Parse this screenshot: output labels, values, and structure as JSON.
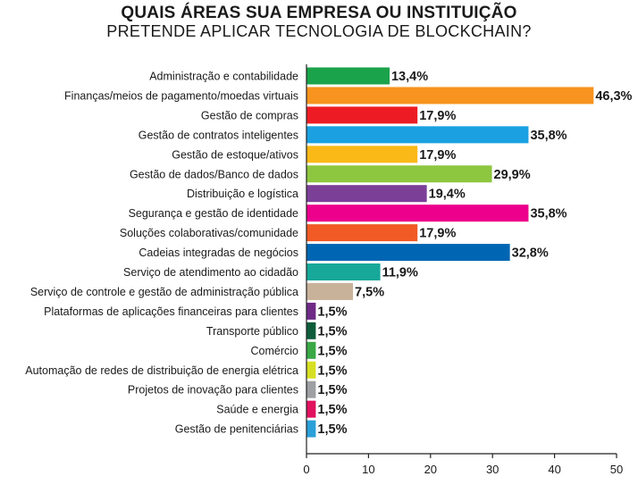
{
  "chart_data": {
    "type": "bar",
    "orientation": "horizontal",
    "title": "QUAIS ÁREAS SUA EMPRESA OU INSTITUIÇÃO",
    "subtitle": "PRETENDE APLICAR TECNOLOGIA DE BLOCKCHAIN?",
    "categories": [
      "Administração e contabilidade",
      "Finanças/meios de pagamento/moedas virtuais",
      "Gestão de compras",
      "Gestão de contratos inteligentes",
      "Gestão de estoque/ativos",
      "Gestão de dados/Banco de dados",
      "Distribuição e logística",
      "Segurança e gestão de identidade",
      "Soluções colaborativas/comunidade",
      "Cadeias integradas de negócios",
      "Serviço de atendimento ao cidadão",
      "Serviço de controle e gestão de administração pública",
      "Plataformas de aplicações financeiras para clientes",
      "Transporte público",
      "Comércio",
      "Automação de redes de distribuição de energia elétrica",
      "Projetos de inovação para clientes",
      "Saúde e energia",
      "Gestão de penitenciárias"
    ],
    "values": [
      13.4,
      46.3,
      17.9,
      35.8,
      17.9,
      29.9,
      19.4,
      35.8,
      17.9,
      32.8,
      11.9,
      7.5,
      1.5,
      1.5,
      1.5,
      1.5,
      1.5,
      1.5,
      1.5
    ],
    "value_labels": [
      "13,4%",
      "46,3%",
      "17,9%",
      "35,8%",
      "17,9%",
      "29,9%",
      "19,4%",
      "35,8%",
      "17,9%",
      "32,8%",
      "11,9%",
      "7,5%",
      "1,5%",
      "1,5%",
      "1,5%",
      "1,5%",
      "1,5%",
      "1,5%",
      "1,5%"
    ],
    "colors": [
      "#1aa34a",
      "#f7931e",
      "#ed1c24",
      "#1ba1e2",
      "#fbb917",
      "#8dc63f",
      "#7b3f98",
      "#ec008c",
      "#f15a24",
      "#0066b3",
      "#17a89a",
      "#c8b29a",
      "#6e2a86",
      "#0f5c3a",
      "#39a845",
      "#d7df23",
      "#9d9fa2",
      "#e0115f",
      "#2b9fd8"
    ],
    "xlim": [
      0,
      50
    ],
    "xticks": [
      0,
      10,
      20,
      30,
      40,
      50
    ],
    "xtick_labels": [
      "0",
      "10",
      "20",
      "30",
      "40",
      "50"
    ],
    "grid": false,
    "legend": "none"
  }
}
